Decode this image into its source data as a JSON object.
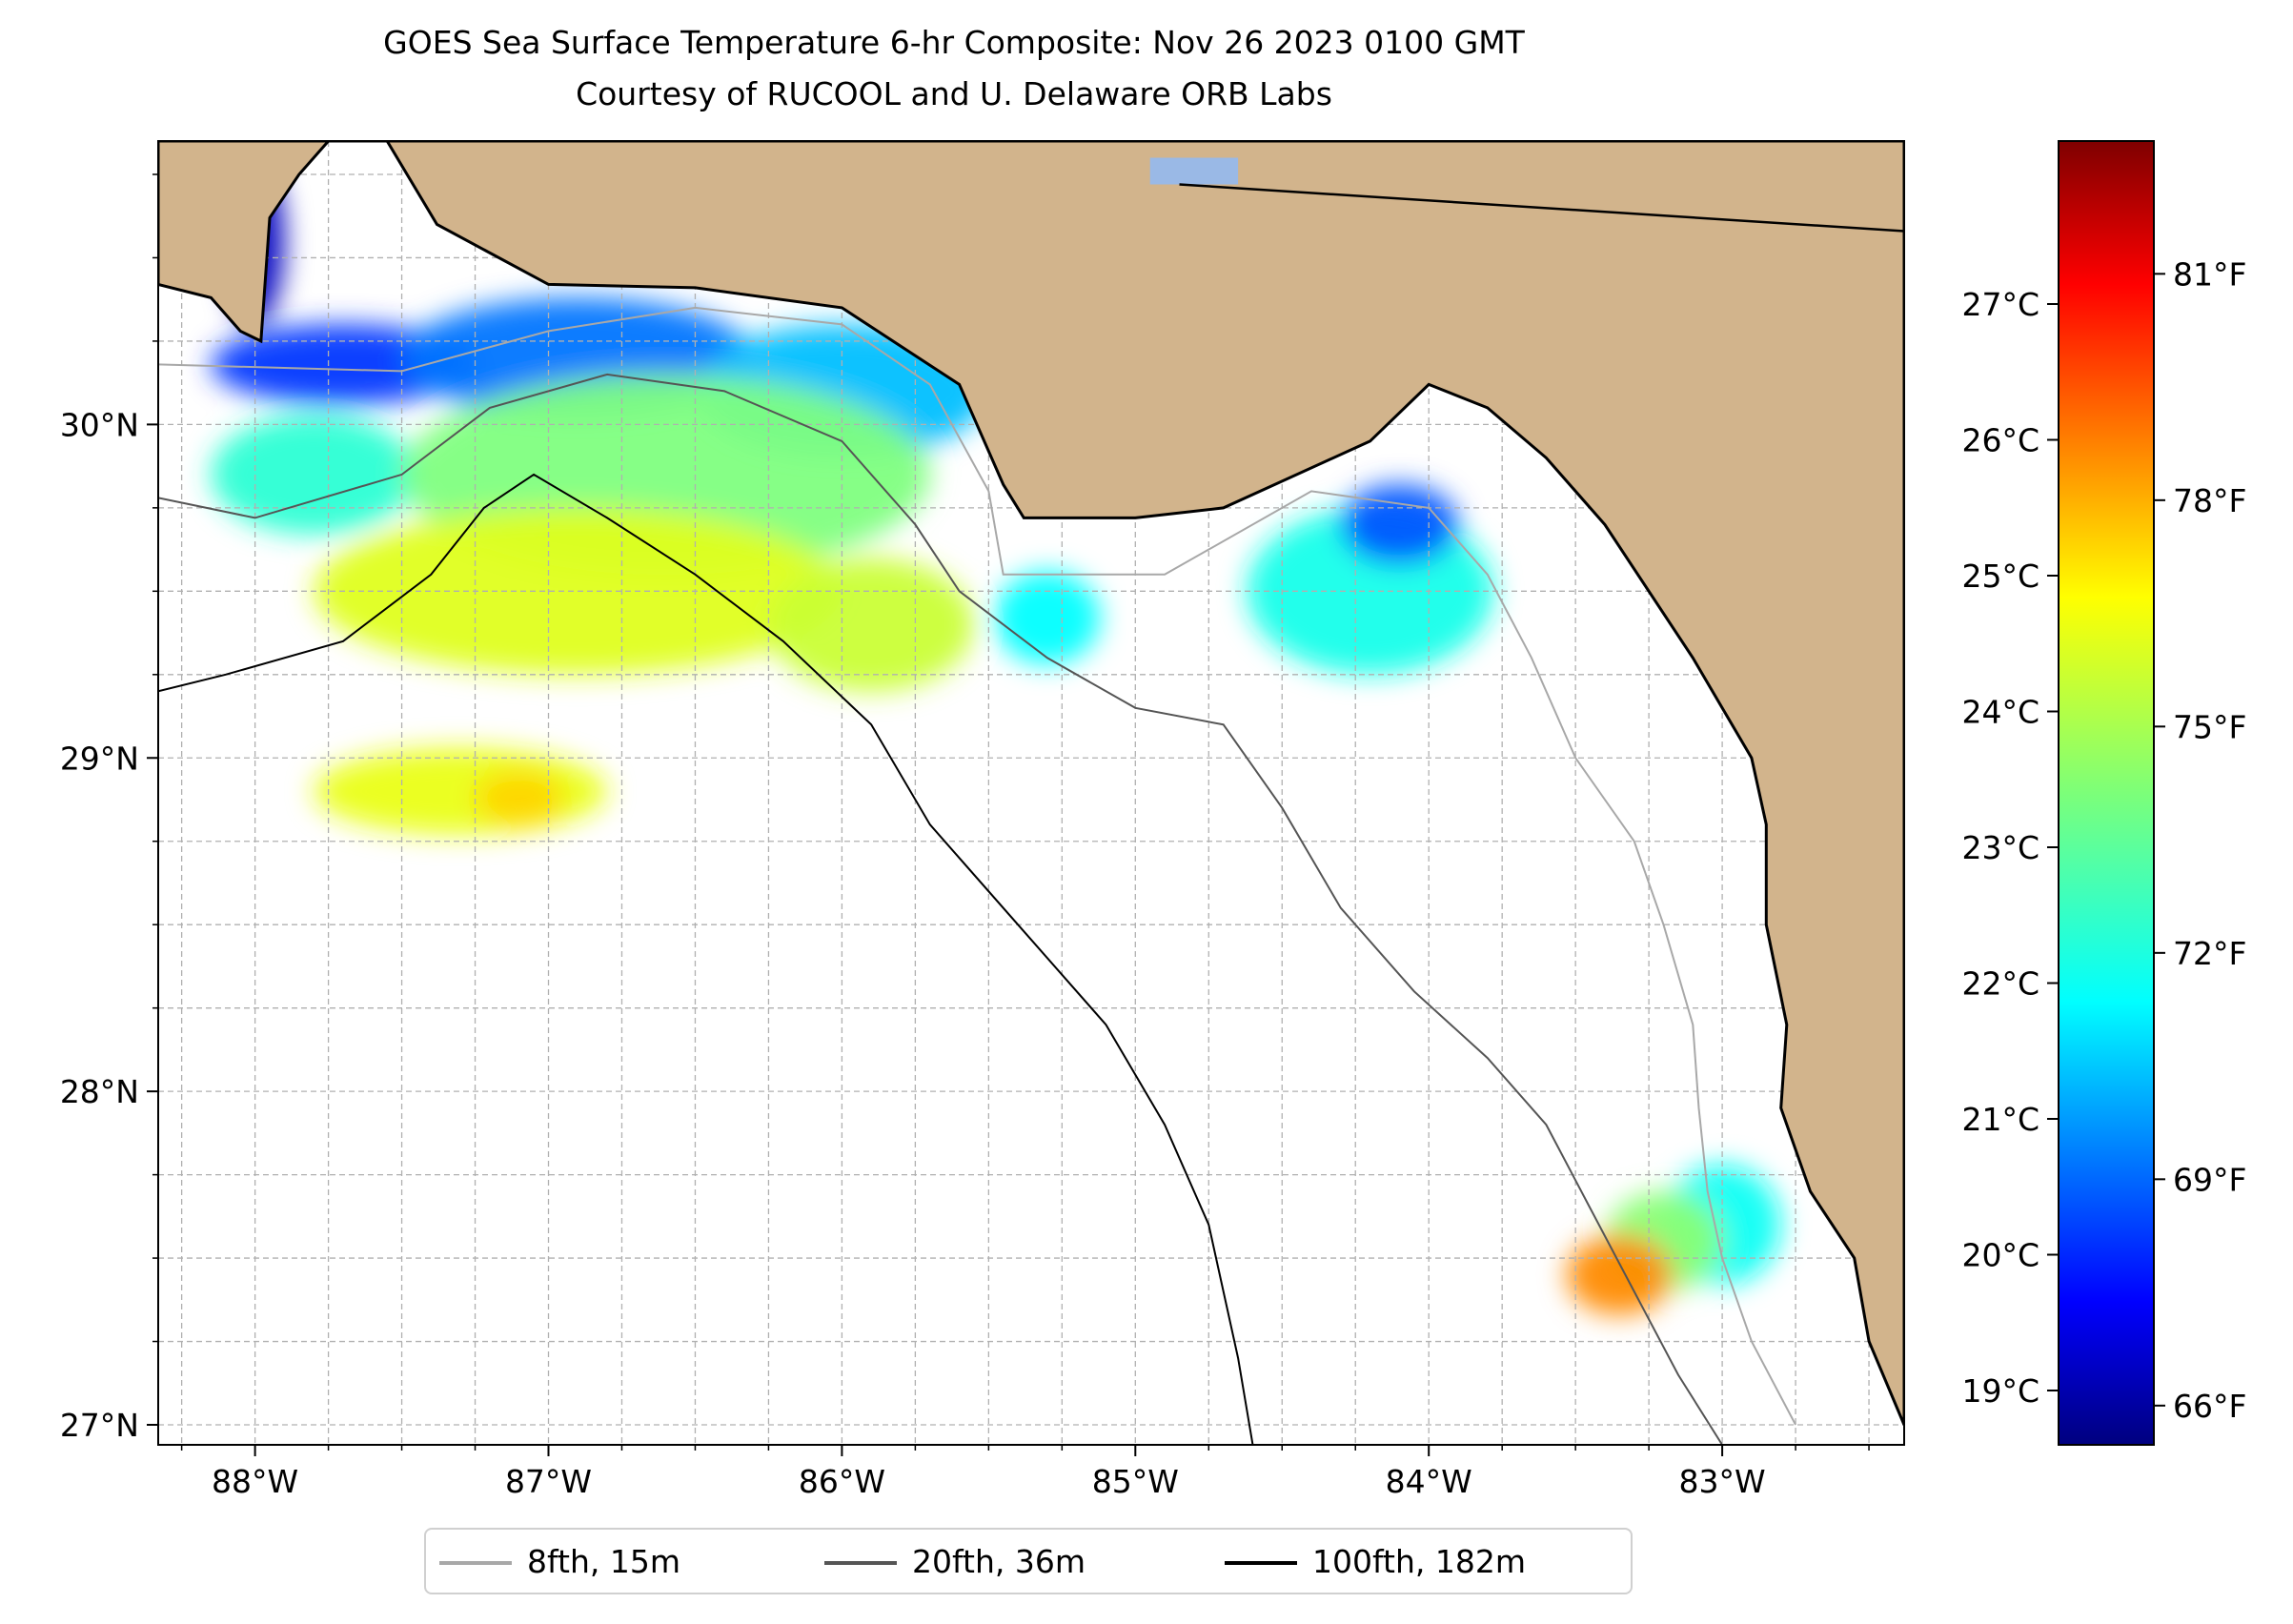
{
  "title": "GOES Sea Surface Temperature 6-hr Composite: Nov 26 2023 0100 GMT",
  "subtitle": "Courtesy of RUCOOL and U. Delaware ORB Labs",
  "colors": {
    "land": "#d2b48c",
    "water": "#ffffff",
    "grid": "#b0b0b0",
    "contour_8fth": "#a8a8a8",
    "contour_20fth": "#555555",
    "contour_100fth": "#000000",
    "lake": "#9ab9e6"
  },
  "map": {
    "lon_range": [
      -88.33,
      -82.38
    ],
    "lat_range": [
      26.94,
      30.85
    ],
    "lon_ticks": [
      {
        "value": -88,
        "label": "88°W"
      },
      {
        "value": -87,
        "label": "87°W"
      },
      {
        "value": -86,
        "label": "86°W"
      },
      {
        "value": -85,
        "label": "85°W"
      },
      {
        "value": -84,
        "label": "84°W"
      },
      {
        "value": -83,
        "label": "83°W"
      }
    ],
    "lat_ticks": [
      {
        "value": 27,
        "label": "27°N"
      },
      {
        "value": 28,
        "label": "28°N"
      },
      {
        "value": 29,
        "label": "29°N"
      },
      {
        "value": 30,
        "label": "30°N"
      }
    ],
    "grid": true
  },
  "colorbar": {
    "colormap": "jet",
    "celsius_range": [
      18.6,
      28.2
    ],
    "celsius_ticks": [
      {
        "value": 19,
        "label": "19°C"
      },
      {
        "value": 20,
        "label": "20°C"
      },
      {
        "value": 21,
        "label": "21°C"
      },
      {
        "value": 22,
        "label": "22°C"
      },
      {
        "value": 23,
        "label": "23°C"
      },
      {
        "value": 24,
        "label": "24°C"
      },
      {
        "value": 25,
        "label": "25°C"
      },
      {
        "value": 26,
        "label": "26°C"
      },
      {
        "value": 27,
        "label": "27°C"
      }
    ],
    "fahrenheit_ticks": [
      {
        "value": 66,
        "label": "66°F"
      },
      {
        "value": 69,
        "label": "69°F"
      },
      {
        "value": 72,
        "label": "72°F"
      },
      {
        "value": 75,
        "label": "75°F"
      },
      {
        "value": 78,
        "label": "78°F"
      },
      {
        "value": 81,
        "label": "81°F"
      }
    ]
  },
  "legend": {
    "placement": "bottom-center",
    "items": [
      {
        "label": "8fth, 15m",
        "color": "#a8a8a8"
      },
      {
        "label": "20fth, 36m",
        "color": "#555555"
      },
      {
        "label": "100fth, 182m",
        "color": "#000000"
      }
    ]
  },
  "sst_patches": [
    {
      "name": "mobile-bay",
      "center": [
        -88.0,
        30.55
      ],
      "radius": [
        0.1,
        0.25
      ],
      "temp_c": 19.2
    },
    {
      "name": "nearshore-west",
      "center": [
        -87.7,
        30.18
      ],
      "radius": [
        0.45,
        0.12
      ],
      "temp_c": 20.3
    },
    {
      "name": "nearshore-center",
      "center": [
        -86.9,
        30.2
      ],
      "radius": [
        0.6,
        0.18
      ],
      "temp_c": 20.9
    },
    {
      "name": "panhandle-coast",
      "center": [
        -86.0,
        30.1
      ],
      "radius": [
        0.5,
        0.2
      ],
      "temp_c": 21.6
    },
    {
      "name": "mid-band-west",
      "center": [
        -87.8,
        29.85
      ],
      "radius": [
        0.35,
        0.18
      ],
      "temp_c": 22.6
    },
    {
      "name": "mid-band-center",
      "center": [
        -86.6,
        29.85
      ],
      "radius": [
        0.9,
        0.3
      ],
      "temp_c": 23.4
    },
    {
      "name": "south-band",
      "center": [
        -86.9,
        29.5
      ],
      "radius": [
        0.9,
        0.25
      ],
      "temp_c": 24.3
    },
    {
      "name": "south-band-east",
      "center": [
        -85.9,
        29.4
      ],
      "radius": [
        0.35,
        0.2
      ],
      "temp_c": 24.1
    },
    {
      "name": "apalachee-west",
      "center": [
        -85.3,
        29.42
      ],
      "radius": [
        0.18,
        0.14
      ],
      "temp_c": 22.2
    },
    {
      "name": "apalachee-east",
      "center": [
        -84.2,
        29.5
      ],
      "radius": [
        0.42,
        0.25
      ],
      "temp_c": 22.4
    },
    {
      "name": "apalachee-north",
      "center": [
        -84.1,
        29.7
      ],
      "radius": [
        0.2,
        0.12
      ],
      "temp_c": 20.6
    },
    {
      "name": "offshore-blob",
      "center": [
        -87.3,
        28.9
      ],
      "radius": [
        0.5,
        0.13
      ],
      "temp_c": 24.4
    },
    {
      "name": "offshore-blob-core",
      "center": [
        -87.1,
        28.88
      ],
      "radius": [
        0.15,
        0.08
      ],
      "temp_c": 25.0
    },
    {
      "name": "tampa-north",
      "center": [
        -83.0,
        27.6
      ],
      "radius": [
        0.2,
        0.18
      ],
      "temp_c": 22.3
    },
    {
      "name": "tampa-mid",
      "center": [
        -83.2,
        27.55
      ],
      "radius": [
        0.2,
        0.15
      ],
      "temp_c": 23.5
    },
    {
      "name": "tampa-south",
      "center": [
        -83.35,
        27.45
      ],
      "radius": [
        0.18,
        0.12
      ],
      "temp_c": 25.7
    }
  ],
  "land_outline": [
    [
      -88.33,
      30.85
    ],
    [
      -87.55,
      30.85
    ],
    [
      -87.38,
      30.6
    ],
    [
      -87.0,
      30.42
    ],
    [
      -86.5,
      30.41
    ],
    [
      -86.0,
      30.35
    ],
    [
      -85.6,
      30.12
    ],
    [
      -85.45,
      29.82
    ],
    [
      -85.38,
      29.72
    ],
    [
      -85.0,
      29.72
    ],
    [
      -84.7,
      29.75
    ],
    [
      -84.2,
      29.95
    ],
    [
      -84.0,
      30.12
    ],
    [
      -83.8,
      30.05
    ],
    [
      -83.6,
      29.9
    ],
    [
      -83.4,
      29.7
    ],
    [
      -83.1,
      29.3
    ],
    [
      -82.9,
      29.0
    ],
    [
      -82.85,
      28.8
    ],
    [
      -82.85,
      28.5
    ],
    [
      -82.78,
      28.2
    ],
    [
      -82.8,
      27.95
    ],
    [
      -82.7,
      27.7
    ],
    [
      -82.55,
      27.5
    ],
    [
      -82.5,
      27.25
    ],
    [
      -82.38,
      27.0
    ],
    [
      -82.38,
      30.85
    ]
  ],
  "west_land": [
    [
      -88.33,
      30.85
    ],
    [
      -88.33,
      30.42
    ],
    [
      -88.15,
      30.38
    ],
    [
      -88.05,
      30.28
    ],
    [
      -87.98,
      30.25
    ],
    [
      -87.95,
      30.62
    ],
    [
      -87.85,
      30.75
    ],
    [
      -87.75,
      30.85
    ]
  ],
  "lake": [
    [
      -84.95,
      30.8
    ],
    [
      -84.65,
      30.8
    ],
    [
      -84.65,
      30.72
    ],
    [
      -84.95,
      30.72
    ]
  ],
  "state_border": [
    [
      -84.85,
      30.72
    ],
    [
      -82.38,
      30.58
    ]
  ],
  "contours": [
    {
      "name": "8fth",
      "points": [
        [
          -88.33,
          30.18
        ],
        [
          -87.5,
          30.16
        ],
        [
          -87.0,
          30.28
        ],
        [
          -86.5,
          30.35
        ],
        [
          -86.0,
          30.3
        ],
        [
          -85.7,
          30.12
        ],
        [
          -85.5,
          29.8
        ],
        [
          -85.45,
          29.55
        ],
        [
          -85.2,
          29.55
        ],
        [
          -84.9,
          29.55
        ],
        [
          -84.4,
          29.8
        ],
        [
          -84.0,
          29.75
        ],
        [
          -83.8,
          29.55
        ],
        [
          -83.65,
          29.3
        ],
        [
          -83.5,
          29.0
        ],
        [
          -83.3,
          28.75
        ],
        [
          -83.2,
          28.5
        ],
        [
          -83.1,
          28.2
        ],
        [
          -83.08,
          27.95
        ],
        [
          -83.05,
          27.7
        ],
        [
          -83.0,
          27.5
        ],
        [
          -82.9,
          27.25
        ],
        [
          -82.75,
          27.0
        ]
      ]
    },
    {
      "name": "20fth",
      "points": [
        [
          -88.33,
          29.78
        ],
        [
          -88.0,
          29.72
        ],
        [
          -87.5,
          29.85
        ],
        [
          -87.2,
          30.05
        ],
        [
          -86.8,
          30.15
        ],
        [
          -86.4,
          30.1
        ],
        [
          -86.0,
          29.95
        ],
        [
          -85.75,
          29.7
        ],
        [
          -85.6,
          29.5
        ],
        [
          -85.3,
          29.3
        ],
        [
          -85.0,
          29.15
        ],
        [
          -84.7,
          29.1
        ],
        [
          -84.5,
          28.85
        ],
        [
          -84.3,
          28.55
        ],
        [
          -84.05,
          28.3
        ],
        [
          -83.8,
          28.1
        ],
        [
          -83.6,
          27.9
        ],
        [
          -83.45,
          27.65
        ],
        [
          -83.3,
          27.4
        ],
        [
          -83.15,
          27.15
        ],
        [
          -83.0,
          26.94
        ]
      ]
    },
    {
      "name": "100fth",
      "points": [
        [
          -88.33,
          29.2
        ],
        [
          -88.1,
          29.25
        ],
        [
          -87.7,
          29.35
        ],
        [
          -87.4,
          29.55
        ],
        [
          -87.22,
          29.75
        ],
        [
          -87.05,
          29.85
        ],
        [
          -86.8,
          29.72
        ],
        [
          -86.5,
          29.55
        ],
        [
          -86.2,
          29.35
        ],
        [
          -85.9,
          29.1
        ],
        [
          -85.7,
          28.8
        ],
        [
          -85.4,
          28.5
        ],
        [
          -85.1,
          28.2
        ],
        [
          -84.9,
          27.9
        ],
        [
          -84.75,
          27.6
        ],
        [
          -84.65,
          27.2
        ],
        [
          -84.6,
          26.94
        ]
      ]
    }
  ]
}
